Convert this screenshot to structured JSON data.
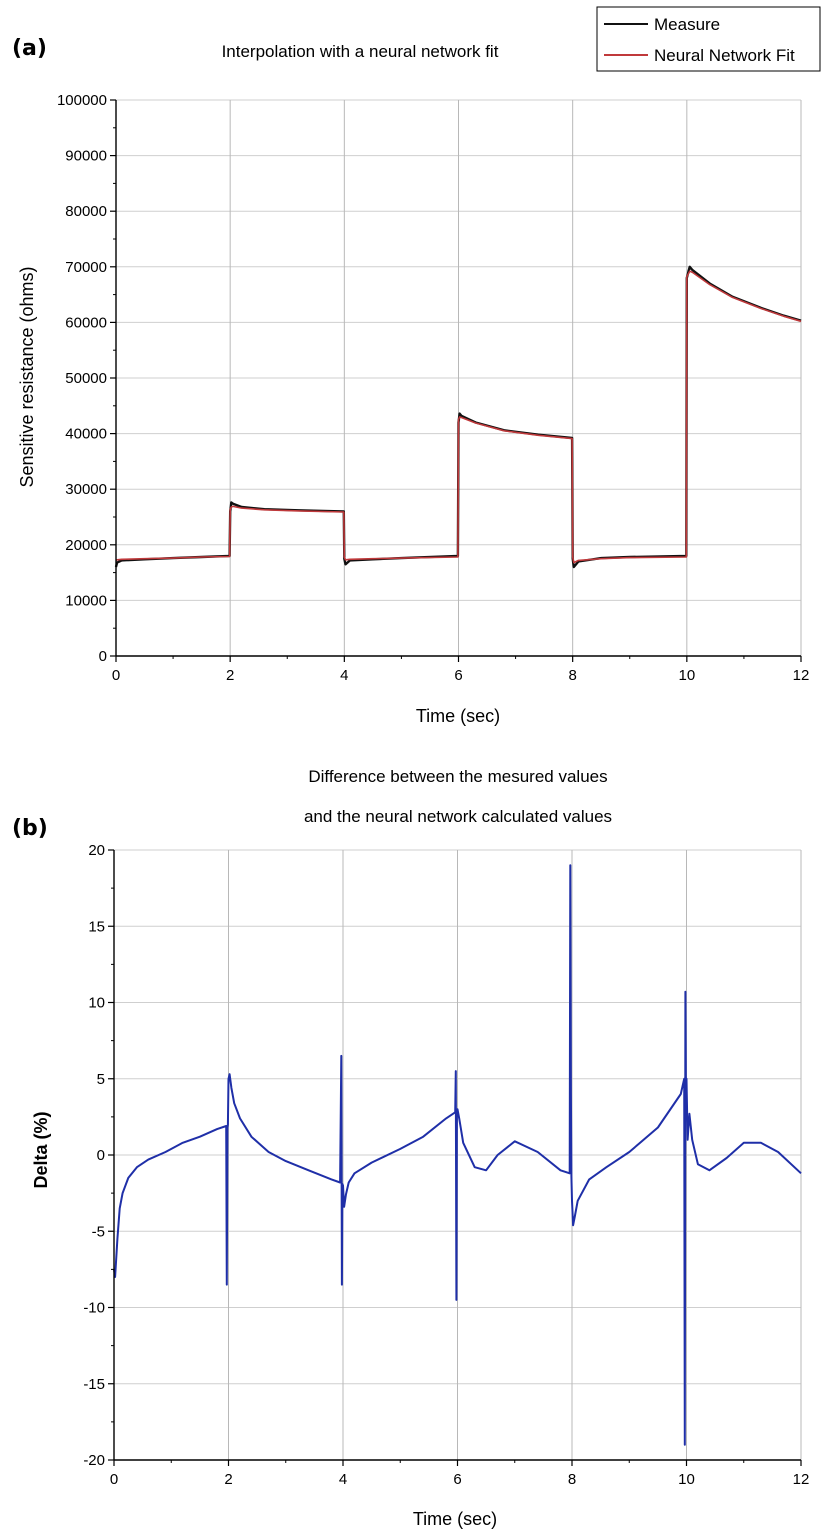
{
  "chart_data": [
    {
      "type": "line",
      "panel_label": "(a)",
      "title": "Interpolation with a neural network fit",
      "xlabel": "Time (sec)",
      "ylabel": "Sensitive resistance (ohms)",
      "xlim": [
        0,
        12
      ],
      "ylim": [
        0,
        100000
      ],
      "xticks": [
        0,
        2,
        4,
        6,
        8,
        10,
        12
      ],
      "xtick_labels": [
        "0",
        "2",
        "4",
        "6",
        "8",
        "10",
        "12"
      ],
      "yticks": [
        0,
        10000,
        20000,
        30000,
        40000,
        50000,
        60000,
        70000,
        80000,
        90000,
        100000
      ],
      "ytick_labels": [
        "0",
        "10000",
        "20000",
        "30000",
        "40000",
        "50000",
        "60000",
        "70000",
        "80000",
        "90000",
        "100000"
      ],
      "grid": true,
      "legend_position": "top-right, outside the plot",
      "series": [
        {
          "name": "Measure",
          "color": "#111111",
          "x": [
            0,
            0.02,
            0.1,
            0.5,
            1.0,
            1.5,
            1.99,
            2.0,
            2.02,
            2.05,
            2.2,
            2.6,
            3.2,
            3.99,
            4.0,
            4.02,
            4.1,
            4.5,
            5.0,
            5.99,
            6.0,
            6.02,
            6.05,
            6.3,
            6.8,
            7.4,
            7.99,
            8.0,
            8.02,
            8.1,
            8.5,
            9.0,
            9.99,
            10.0,
            10.05,
            10.1,
            10.4,
            10.8,
            11.3,
            11.7,
            12.0
          ],
          "y": [
            16000,
            16800,
            17200,
            17400,
            17600,
            17800,
            18000,
            26000,
            27600,
            27400,
            26800,
            26400,
            26200,
            26000,
            17500,
            16500,
            17200,
            17400,
            17600,
            18000,
            42000,
            43600,
            43200,
            42000,
            40600,
            39800,
            39200,
            17500,
            16000,
            17000,
            17600,
            17800,
            18000,
            68000,
            70000,
            69400,
            67000,
            64600,
            62600,
            61200,
            60300
          ]
        },
        {
          "name": "Neural Network Fit",
          "color": "#c0393b",
          "x": [
            0,
            0.02,
            0.1,
            0.5,
            1.0,
            1.5,
            1.99,
            2.0,
            2.02,
            2.05,
            2.2,
            2.6,
            3.2,
            3.99,
            4.0,
            4.02,
            4.1,
            4.5,
            5.0,
            5.99,
            6.0,
            6.02,
            6.05,
            6.3,
            6.8,
            7.4,
            7.99,
            8.0,
            8.02,
            8.1,
            8.5,
            9.0,
            9.99,
            10.0,
            10.05,
            10.1,
            10.4,
            10.8,
            11.3,
            11.7,
            12.0
          ],
          "y": [
            17200,
            17300,
            17400,
            17500,
            17600,
            17800,
            17900,
            26400,
            26800,
            26900,
            26600,
            26300,
            26100,
            25900,
            17800,
            17300,
            17400,
            17500,
            17600,
            17800,
            42500,
            43000,
            42900,
            41900,
            40500,
            39700,
            39100,
            17800,
            16800,
            17200,
            17500,
            17700,
            17800,
            68200,
            69200,
            69000,
            66800,
            64500,
            62500,
            61100,
            60200
          ]
        }
      ]
    },
    {
      "type": "line",
      "panel_label": "(b)",
      "title_lines": [
        "Difference between the mesured values",
        "and the neural network calculated values"
      ],
      "xlabel": "Time (sec)",
      "ylabel": "Delta (%)",
      "xlim": [
        0,
        12
      ],
      "ylim": [
        -20,
        20
      ],
      "xticks": [
        0,
        2,
        4,
        6,
        8,
        10,
        12
      ],
      "xtick_labels": [
        "0",
        "2",
        "4",
        "6",
        "8",
        "10",
        "12"
      ],
      "yticks": [
        -20,
        -15,
        -10,
        -5,
        0,
        5,
        10,
        15,
        20
      ],
      "ytick_labels": [
        "-20",
        "-15",
        "-10",
        "-5",
        "0",
        "5",
        "10",
        "15",
        "20"
      ],
      "grid": true,
      "series": [
        {
          "color": "#1f2fa8",
          "x": [
            0,
            0.02,
            0.06,
            0.1,
            0.15,
            0.25,
            0.4,
            0.6,
            0.9,
            1.2,
            1.5,
            1.8,
            1.96,
            1.97,
            1.98,
            1.99,
            2.0,
            2.02,
            2.05,
            2.1,
            2.2,
            2.4,
            2.7,
            3.0,
            3.4,
            3.8,
            3.95,
            3.97,
            3.98,
            3.99,
            4.0,
            4.02,
            4.05,
            4.1,
            4.2,
            4.5,
            5.0,
            5.4,
            5.8,
            5.96,
            5.97,
            5.98,
            5.99,
            6.0,
            6.03,
            6.1,
            6.3,
            6.5,
            6.7,
            7.0,
            7.4,
            7.8,
            7.96,
            7.97,
            7.98,
            7.99,
            8.0,
            8.02,
            8.05,
            8.1,
            8.3,
            8.6,
            9.0,
            9.5,
            9.9,
            9.96,
            9.97,
            9.98,
            9.99,
            10.0,
            10.02,
            10.05,
            10.1,
            10.2,
            10.4,
            10.7,
            11.0,
            11.3,
            11.6,
            12.0
          ],
          "y": [
            -7.5,
            -8.0,
            -5.5,
            -3.5,
            -2.5,
            -1.5,
            -0.8,
            -0.3,
            0.2,
            0.8,
            1.2,
            1.7,
            1.9,
            -8.5,
            1.8,
            2.0,
            5.0,
            5.3,
            4.4,
            3.4,
            2.4,
            1.2,
            0.2,
            -0.4,
            -1.0,
            -1.6,
            -1.8,
            6.5,
            -8.5,
            -1.9,
            -2.0,
            -3.4,
            -2.6,
            -1.8,
            -1.2,
            -0.5,
            0.4,
            1.2,
            2.4,
            2.8,
            5.5,
            -9.5,
            2.7,
            3.0,
            2.4,
            0.8,
            -0.8,
            -1.0,
            0.0,
            0.9,
            0.2,
            -1.0,
            -1.2,
            19.0,
            4.0,
            -1.4,
            -3.0,
            -4.6,
            -4.0,
            -3.0,
            -1.6,
            -0.8,
            0.2,
            1.8,
            4.0,
            5.0,
            -19.0,
            10.7,
            4.5,
            5.0,
            1.0,
            2.7,
            1.0,
            -0.6,
            -1.0,
            -0.2,
            0.8,
            0.8,
            0.2,
            -1.2
          ]
        }
      ]
    }
  ]
}
